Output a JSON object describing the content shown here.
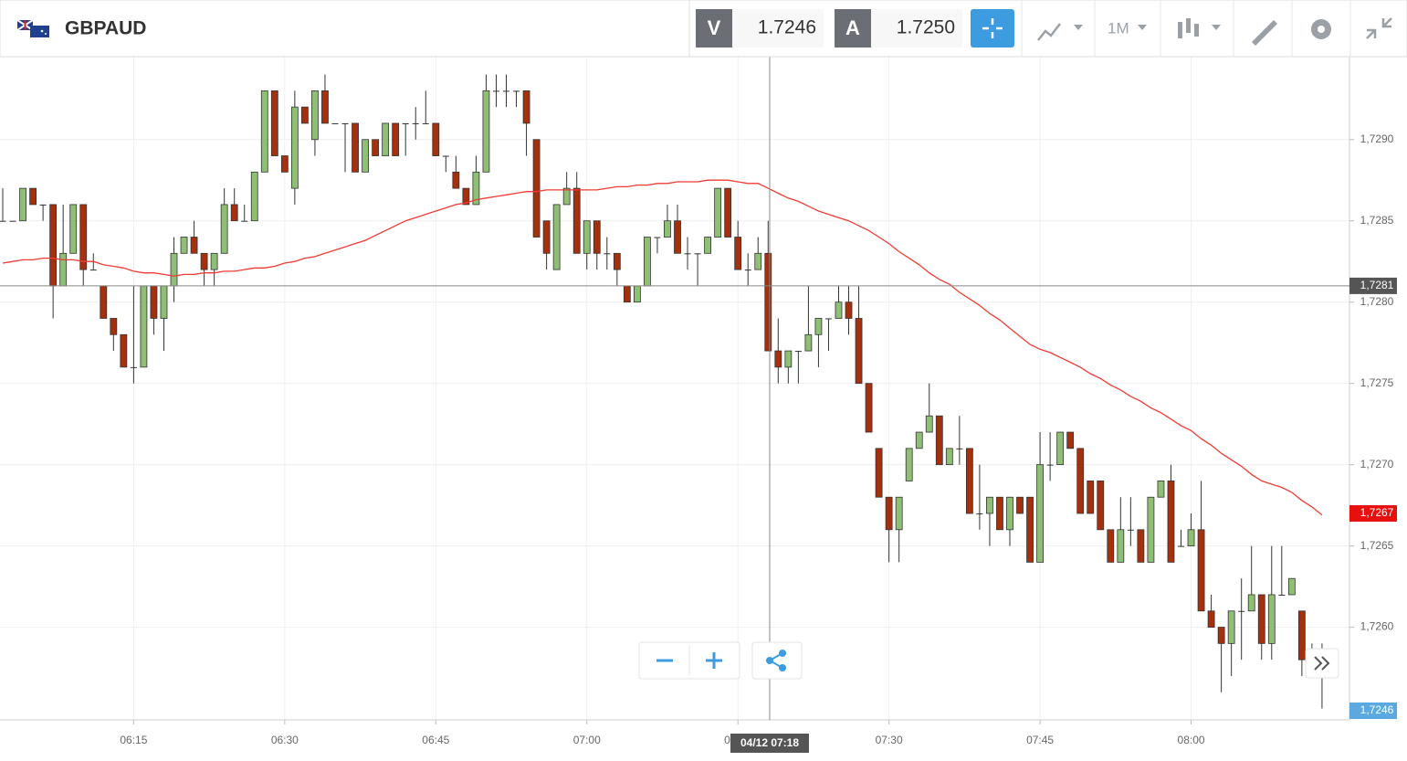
{
  "header": {
    "symbol": "GBPAUD",
    "bid_label": "V",
    "bid": "1.7246",
    "ask_label": "A",
    "ask": "1.7250",
    "timeframe": "1M"
  },
  "chart_data": {
    "type": "candlestick",
    "categories": [
      null,
      null,
      null,
      null,
      null,
      null,
      null,
      null,
      null,
      null,
      null,
      null,
      null,
      "06:15",
      null,
      null,
      null,
      null,
      null,
      null,
      null,
      null,
      null,
      null,
      null,
      null,
      null,
      null,
      "06:30",
      null,
      null,
      null,
      null,
      null,
      null,
      null,
      null,
      null,
      null,
      null,
      null,
      null,
      null,
      "06:45",
      null,
      null,
      null,
      null,
      null,
      null,
      null,
      null,
      null,
      null,
      null,
      null,
      null,
      null,
      "07:00",
      null,
      null,
      null,
      null,
      null,
      null,
      null,
      null,
      null,
      null,
      null,
      null,
      null,
      null,
      "07:15",
      null,
      null,
      null,
      null,
      null,
      null,
      null,
      null,
      null,
      null,
      null,
      null,
      null,
      null,
      "07:30",
      null,
      null,
      null,
      null,
      null,
      null,
      null,
      null,
      null,
      null,
      null,
      null,
      null,
      null,
      "07:45",
      null,
      null,
      null,
      null,
      null,
      null,
      null,
      null,
      null,
      null,
      null,
      null,
      null,
      null,
      "08:00",
      null,
      null,
      null,
      null,
      null,
      null,
      null,
      null,
      null,
      null,
      null,
      null,
      null
    ],
    "open": [
      1.7285,
      1.7285,
      1.7285,
      1.7287,
      1.7286,
      1.7286,
      1.7281,
      1.7283,
      1.7286,
      1.7282,
      1.7281,
      1.7279,
      1.7278,
      1.7276,
      1.7276,
      1.7281,
      1.7279,
      1.7281,
      1.7283,
      1.7284,
      1.7283,
      1.7282,
      1.7283,
      1.7286,
      1.7285,
      1.7285,
      1.7288,
      1.7293,
      1.7289,
      1.7287,
      1.7292,
      1.729,
      1.7293,
      1.7291,
      1.7291,
      1.7291,
      1.7288,
      1.729,
      1.7289,
      1.7291,
      1.7291,
      1.7291,
      1.7291,
      1.7291,
      1.7289,
      1.7288,
      1.7287,
      1.7286,
      1.7288,
      1.7293,
      1.7293,
      1.7293,
      1.7293,
      1.729,
      1.7285,
      1.7282,
      1.7286,
      1.7287,
      1.7283,
      1.7285,
      1.7283,
      1.7283,
      1.7281,
      1.728,
      1.7281,
      1.7284,
      1.7284,
      1.7285,
      1.7283,
      1.7283,
      1.7283,
      1.7284,
      1.7287,
      1.7284,
      1.7282,
      1.7282,
      1.7283,
      1.7277,
      1.7276,
      1.7277,
      1.7277,
      1.7278,
      1.7279,
      1.7279,
      1.728,
      1.7279,
      1.7275,
      1.7271,
      1.7268,
      1.7266,
      1.7269,
      1.7271,
      1.7272,
      1.7273,
      1.727,
      1.7271,
      1.7271,
      1.7267,
      1.7267,
      1.7268,
      1.7266,
      1.7268,
      1.7268,
      1.7264,
      1.727,
      1.727,
      1.7272,
      1.7271,
      1.7269,
      1.7269,
      1.7266,
      1.7264,
      1.7266,
      1.7266,
      1.7264,
      1.7268,
      1.7269,
      1.7265,
      1.7265,
      1.7266,
      1.7261,
      1.726,
      1.7259,
      1.7261,
      1.7261,
      1.7262,
      1.7259,
      1.7262,
      1.7262,
      1.7261,
      1.7258,
      1.7258
    ],
    "high": [
      1.7287,
      1.7285,
      1.7287,
      1.7287,
      1.7286,
      1.7286,
      1.7286,
      1.7286,
      1.7286,
      1.7283,
      1.7281,
      1.7279,
      1.7278,
      1.7281,
      1.7281,
      1.7281,
      1.7281,
      1.7284,
      1.7284,
      1.7285,
      1.7283,
      1.7283,
      1.7287,
      1.7287,
      1.7286,
      1.7288,
      1.7293,
      1.7293,
      1.7289,
      1.7293,
      1.7292,
      1.7293,
      1.7294,
      1.7291,
      1.7291,
      1.7291,
      1.729,
      1.729,
      1.7291,
      1.7291,
      1.7291,
      1.7292,
      1.7293,
      1.7291,
      1.7289,
      1.7289,
      1.7287,
      1.7289,
      1.7294,
      1.7294,
      1.7294,
      1.7293,
      1.7293,
      1.729,
      1.7285,
      1.7286,
      1.7288,
      1.7288,
      1.7285,
      1.7285,
      1.7284,
      1.7283,
      1.7281,
      1.7281,
      1.7284,
      1.7284,
      1.7286,
      1.7286,
      1.7284,
      1.7283,
      1.7284,
      1.7287,
      1.7287,
      1.7285,
      1.7283,
      1.7284,
      1.7285,
      1.7279,
      1.7277,
      1.7277,
      1.7281,
      1.7279,
      1.7279,
      1.7281,
      1.7281,
      1.7281,
      1.7275,
      1.7271,
      1.7268,
      1.7268,
      1.7271,
      1.7272,
      1.7275,
      1.7273,
      1.7271,
      1.7273,
      1.7271,
      1.727,
      1.7268,
      1.7268,
      1.7268,
      1.7268,
      1.7268,
      1.7272,
      1.7272,
      1.7272,
      1.7272,
      1.7271,
      1.7269,
      1.7269,
      1.7266,
      1.7268,
      1.7268,
      1.7266,
      1.7268,
      1.7269,
      1.727,
      1.7266,
      1.7267,
      1.7269,
      1.7262,
      1.726,
      1.7261,
      1.7263,
      1.7265,
      1.7262,
      1.7265,
      1.7265,
      1.7263,
      1.7261,
      1.7259,
      1.7259
    ],
    "low": [
      1.7285,
      1.7285,
      1.7285,
      1.7286,
      1.7285,
      1.7279,
      1.7281,
      1.7283,
      1.7281,
      1.7282,
      1.7279,
      1.7277,
      1.7276,
      1.7275,
      1.7276,
      1.7278,
      1.7277,
      1.728,
      1.7283,
      1.7283,
      1.7281,
      1.7281,
      1.7283,
      1.7285,
      1.7285,
      1.7285,
      1.7288,
      1.7289,
      1.7288,
      1.7286,
      1.7291,
      1.7289,
      1.7291,
      1.7291,
      1.7288,
      1.7288,
      1.7288,
      1.7289,
      1.7289,
      1.7289,
      1.7289,
      1.729,
      1.7291,
      1.7289,
      1.7288,
      1.7287,
      1.7286,
      1.7286,
      1.7288,
      1.7292,
      1.7292,
      1.7292,
      1.7289,
      1.7284,
      1.7282,
      1.7282,
      1.7286,
      1.7283,
      1.7282,
      1.7282,
      1.7282,
      1.7281,
      1.728,
      1.728,
      1.7281,
      1.7283,
      1.7284,
      1.7283,
      1.7282,
      1.7281,
      1.7283,
      1.7284,
      1.7284,
      1.7282,
      1.7281,
      1.7282,
      1.7277,
      1.7275,
      1.7275,
      1.7275,
      1.7277,
      1.7276,
      1.7277,
      1.7279,
      1.7278,
      1.7275,
      1.7272,
      1.7268,
      1.7264,
      1.7264,
      1.7269,
      1.7271,
      1.7272,
      1.727,
      1.727,
      1.727,
      1.7267,
      1.7266,
      1.7265,
      1.7266,
      1.7265,
      1.7267,
      1.7264,
      1.7264,
      1.7269,
      1.727,
      1.7271,
      1.7267,
      1.7267,
      1.7266,
      1.7264,
      1.7264,
      1.7265,
      1.7264,
      1.7264,
      1.7268,
      1.7264,
      1.7265,
      1.7265,
      1.7261,
      1.726,
      1.7256,
      1.7257,
      1.7258,
      1.7261,
      1.7258,
      1.7258,
      1.7262,
      1.7262,
      1.7257,
      1.7257,
      1.7255
    ],
    "close": [
      1.7285,
      1.7285,
      1.7287,
      1.7286,
      1.7286,
      1.7281,
      1.7283,
      1.7286,
      1.7282,
      1.7282,
      1.7279,
      1.7278,
      1.7276,
      1.7276,
      1.7281,
      1.7279,
      1.7281,
      1.7283,
      1.7284,
      1.7283,
      1.7282,
      1.7283,
      1.7286,
      1.7285,
      1.7285,
      1.7288,
      1.7293,
      1.7289,
      1.7288,
      1.7292,
      1.7291,
      1.7293,
      1.7291,
      1.7291,
      1.7291,
      1.7288,
      1.729,
      1.7289,
      1.7291,
      1.7289,
      1.7291,
      1.7291,
      1.7291,
      1.7289,
      1.7289,
      1.7287,
      1.7286,
      1.7288,
      1.7293,
      1.7293,
      1.7293,
      1.7293,
      1.7291,
      1.7284,
      1.7283,
      1.7286,
      1.7287,
      1.7283,
      1.7285,
      1.7283,
      1.7283,
      1.7282,
      1.728,
      1.7281,
      1.7284,
      1.7284,
      1.7285,
      1.7283,
      1.7283,
      1.7283,
      1.7284,
      1.7287,
      1.7284,
      1.7282,
      1.7282,
      1.7283,
      1.7277,
      1.7276,
      1.7277,
      1.7277,
      1.7278,
      1.7279,
      1.7279,
      1.728,
      1.7279,
      1.7275,
      1.7272,
      1.7268,
      1.7266,
      1.7268,
      1.7271,
      1.7272,
      1.7273,
      1.727,
      1.7271,
      1.7271,
      1.7267,
      1.7267,
      1.7268,
      1.7266,
      1.7268,
      1.7267,
      1.7264,
      1.727,
      1.727,
      1.7272,
      1.7271,
      1.7267,
      1.7267,
      1.7266,
      1.7264,
      1.7266,
      1.7266,
      1.7264,
      1.7268,
      1.7269,
      1.7264,
      1.7265,
      1.7266,
      1.7261,
      1.726,
      1.7259,
      1.7261,
      1.7261,
      1.7262,
      1.7259,
      1.7262,
      1.7262,
      1.7263,
      1.7258,
      1.7258,
      1.7258
    ],
    "up_color": "#8fbf74",
    "down_color": "#a5300e",
    "moving_average": {
      "color": "#ef3b36",
      "values": [
        1.72824,
        1.72825,
        1.72826,
        1.72826,
        1.72827,
        1.72827,
        1.72826,
        1.72826,
        1.72825,
        1.72825,
        1.72823,
        1.72822,
        1.72821,
        1.72819,
        1.72818,
        1.72818,
        1.72817,
        1.72816,
        1.72817,
        1.72817,
        1.72818,
        1.72818,
        1.72819,
        1.72819,
        1.7282,
        1.72821,
        1.72821,
        1.72822,
        1.72824,
        1.72825,
        1.72827,
        1.72828,
        1.7283,
        1.72832,
        1.72834,
        1.72836,
        1.72838,
        1.72841,
        1.72844,
        1.72847,
        1.7285,
        1.72852,
        1.72854,
        1.72856,
        1.72858,
        1.7286,
        1.72861,
        1.72863,
        1.72864,
        1.72865,
        1.72866,
        1.72867,
        1.72868,
        1.72868,
        1.72869,
        1.72869,
        1.72869,
        1.72869,
        1.72869,
        1.72869,
        1.7287,
        1.72871,
        1.72871,
        1.72872,
        1.72872,
        1.72873,
        1.72873,
        1.72874,
        1.72874,
        1.72874,
        1.72875,
        1.72875,
        1.72875,
        1.72874,
        1.72873,
        1.72873,
        1.7287,
        1.72867,
        1.72864,
        1.72862,
        1.72859,
        1.72856,
        1.72854,
        1.72852,
        1.7285,
        1.72847,
        1.72844,
        1.7284,
        1.72836,
        1.72831,
        1.72827,
        1.72823,
        1.72818,
        1.72814,
        1.72811,
        1.72806,
        1.72802,
        1.72798,
        1.72793,
        1.72789,
        1.72784,
        1.72779,
        1.72774,
        1.72771,
        1.72769,
        1.72766,
        1.72763,
        1.7276,
        1.72756,
        1.72753,
        1.72749,
        1.72746,
        1.72742,
        1.72739,
        1.72735,
        1.72732,
        1.72728,
        1.72724,
        1.72721,
        1.72716,
        1.72712,
        1.72707,
        1.72703,
        1.72699,
        1.72694,
        1.7269,
        1.72688,
        1.72686,
        1.72683,
        1.72678,
        1.72674,
        1.72669
      ]
    },
    "ylim": [
      1.72543,
      1.72951
    ],
    "yticks": [
      {
        "value": 1.726,
        "label": "1,7260"
      },
      {
        "value": 1.7265,
        "label": "1,7265"
      },
      {
        "value": 1.727,
        "label": "1,7270"
      },
      {
        "value": 1.7275,
        "label": "1,7275"
      },
      {
        "value": 1.728,
        "label": "1,7280"
      },
      {
        "value": 1.7285,
        "label": "1,7285"
      },
      {
        "value": 1.729,
        "label": "1,7290"
      }
    ],
    "grid": true,
    "crosshair": {
      "value": 1.7281,
      "label": "1,7281",
      "time_label": "04/12 07:18"
    },
    "last_price": {
      "value": 1.7267,
      "label": "1,7267"
    },
    "bid_marker_label": "1,7246"
  }
}
